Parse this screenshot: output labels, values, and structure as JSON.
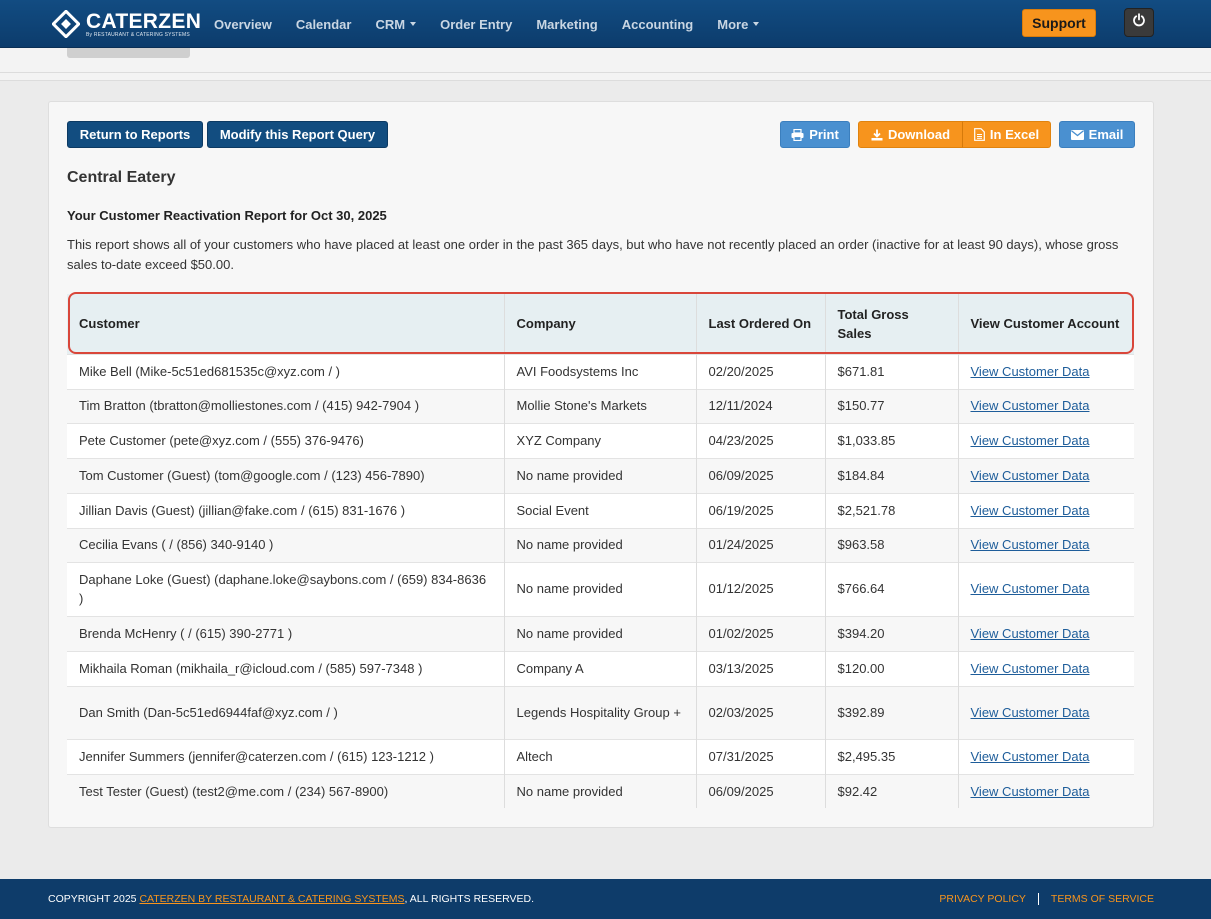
{
  "brand": {
    "name": "CATERZEN",
    "tagline": "By RESTAURANT & CATERING SYSTEMS"
  },
  "nav": {
    "items": [
      {
        "label": "Overview",
        "dropdown": false
      },
      {
        "label": "Calendar",
        "dropdown": false
      },
      {
        "label": "CRM",
        "dropdown": true
      },
      {
        "label": "Order Entry",
        "dropdown": false
      },
      {
        "label": "Marketing",
        "dropdown": false
      },
      {
        "label": "Accounting",
        "dropdown": false
      },
      {
        "label": "More",
        "dropdown": true
      }
    ],
    "support_label": "Support"
  },
  "toolbar": {
    "return_label": "Return to Reports",
    "modify_label": "Modify this Report Query",
    "print_label": "Print",
    "download_label": "Download",
    "excel_label": "In Excel",
    "email_label": "Email"
  },
  "report": {
    "company": "Central Eatery",
    "title": "Your Customer Reactivation Report for Oct 30, 2025",
    "description": "This report shows all of your customers who have placed at least one order in the past 365 days, but who have not recently placed an order (inactive for at least 90 days), whose gross sales to-date exceed $50.00."
  },
  "table": {
    "columns": [
      "Customer",
      "Company",
      "Last Ordered On",
      "Total Gross Sales",
      "View Customer Account"
    ],
    "rows": [
      {
        "customer": "Mike Bell (Mike-5c51ed681535c@xyz.com / )",
        "company": "AVI Foodsystems Inc",
        "last_ordered": "02/20/2025",
        "total": "$671.81",
        "link": "View Customer Data"
      },
      {
        "customer": "Tim Bratton (tbratton@molliestones.com / (415) 942-7904 )",
        "company": "Mollie Stone's Markets",
        "last_ordered": "12/11/2024",
        "total": "$150.77",
        "link": "View Customer Data"
      },
      {
        "customer": "Pete Customer (pete@xyz.com / (555) 376-9476)",
        "company": "XYZ Company",
        "last_ordered": "04/23/2025",
        "total": "$1,033.85",
        "link": "View Customer Data"
      },
      {
        "customer": "Tom Customer (Guest) (tom@google.com / (123) 456-7890)",
        "company": "No name provided",
        "last_ordered": "06/09/2025",
        "total": "$184.84",
        "link": "View Customer Data"
      },
      {
        "customer": "Jillian Davis (Guest) (jillian@fake.com / (615) 831-1676 )",
        "company": "Social Event",
        "last_ordered": "06/19/2025",
        "total": "$2,521.78",
        "link": "View Customer Data"
      },
      {
        "customer": "Cecilia Evans ( / (856) 340-9140 )",
        "company": "No name provided",
        "last_ordered": "01/24/2025",
        "total": "$963.58",
        "link": "View Customer Data"
      },
      {
        "customer": "Daphane Loke (Guest) (daphane.loke@saybons.com / (659) 834-8636 )",
        "company": "No name provided",
        "last_ordered": "01/12/2025",
        "total": "$766.64",
        "link": "View Customer Data"
      },
      {
        "customer": "Brenda McHenry ( / (615) 390-2771 )",
        "company": "No name provided",
        "last_ordered": "01/02/2025",
        "total": "$394.20",
        "link": "View Customer Data"
      },
      {
        "customer": "Mikhaila Roman (mikhaila_r@icloud.com / (585) 597-7348 )",
        "company": "Company A",
        "last_ordered": "03/13/2025",
        "total": "$120.00",
        "link": "View Customer Data"
      },
      {
        "customer": "Dan Smith (Dan-5c51ed6944faf@xyz.com / )",
        "company": "Legends Hospitality Group +",
        "last_ordered": "02/03/2025",
        "total": "$392.89",
        "link": "View Customer Data"
      },
      {
        "customer": "Jennifer Summers (jennifer@caterzen.com / (615) 123-1212 )",
        "company": "Altech",
        "last_ordered": "07/31/2025",
        "total": "$2,495.35",
        "link": "View Customer Data"
      },
      {
        "customer": "Test Tester (Guest) (test2@me.com / (234) 567-8900)",
        "company": "No name provided",
        "last_ordered": "06/09/2025",
        "total": "$92.42",
        "link": "View Customer Data"
      }
    ]
  },
  "footer": {
    "copyright_prefix": "COPYRIGHT 2025 ",
    "company_link": "CATERZEN BY RESTAURANT & CATERING SYSTEMS",
    "copyright_suffix": ", ALL RIGHTS RESERVED.",
    "privacy": "PRIVACY POLICY",
    "terms": "TERMS OF SERVICE"
  },
  "colors": {
    "nav_bg": "#124c82",
    "accent_orange": "#f7941d",
    "primary_dark": "#124d80",
    "button_blue": "#4a90d0",
    "highlight_red": "#d9463a",
    "link_blue": "#1e5d9a"
  },
  "icons": [
    "caterzen-logo-icon",
    "power-icon",
    "print-icon",
    "download-icon",
    "excel-file-icon",
    "envelope-icon",
    "caret-down-icon"
  ]
}
